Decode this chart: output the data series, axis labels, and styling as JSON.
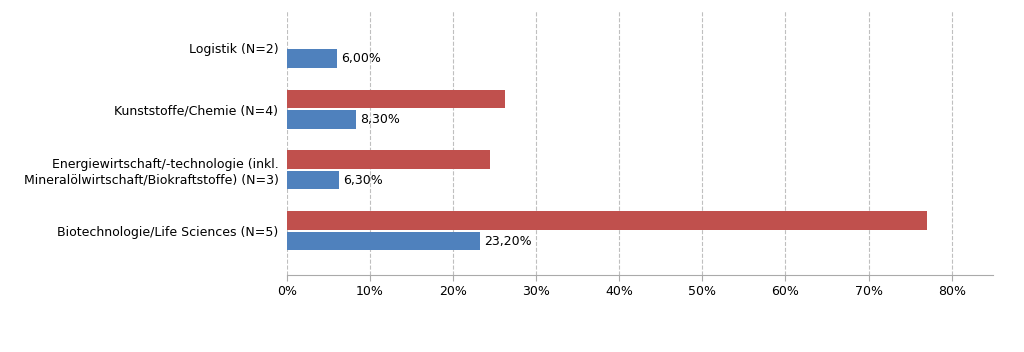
{
  "categories": [
    "Biotechnologie/Life Sciences (N=5)",
    "Energiewirtschaft/-technologie (inkl.\nMineralölwirtschaft/Biokraftstoffe) (N=3)",
    "Kunststoffe/Chemie (N=4)",
    "Logistik (N=2)"
  ],
  "red_values": [
    0.77,
    0.245,
    0.262,
    0.0
  ],
  "blue_values": [
    0.232,
    0.063,
    0.083,
    0.06
  ],
  "blue_labels": [
    "23,20%",
    "6,30%",
    "8,30%",
    "6,00%"
  ],
  "red_color": "#C0504D",
  "blue_color": "#4F81BD",
  "xlim": [
    0,
    0.85
  ],
  "xticks": [
    0.0,
    0.1,
    0.2,
    0.3,
    0.4,
    0.5,
    0.6,
    0.7,
    0.8
  ],
  "xtick_labels": [
    "0%",
    "10%",
    "20%",
    "30%",
    "40%",
    "50%",
    "60%",
    "70%",
    "80%"
  ],
  "background_color": "#FFFFFF",
  "grid_color": "#BFBFBF",
  "label_fontsize": 9,
  "tick_fontsize": 9,
  "legend_fontsize": 9,
  "bar_height": 0.3,
  "bar_gap": 0.04
}
